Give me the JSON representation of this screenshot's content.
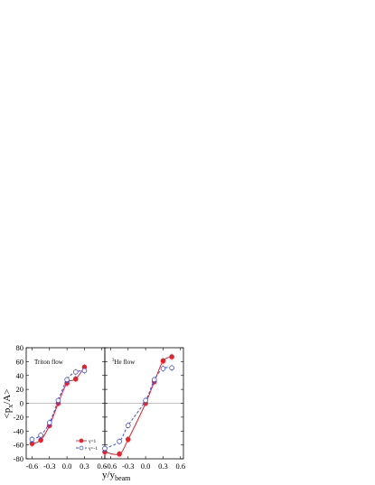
{
  "chart_data": [
    {
      "type": "line",
      "panel": "left",
      "annotation": "Triton flow",
      "ylabel": "<pₓ/A>",
      "ylabel_parts": {
        "pre": "<p",
        "sub": "x",
        "post": "/A>"
      },
      "xlabel": "y/y",
      "xlabel_sub": "beam",
      "xlim": [
        -0.7,
        0.65
      ],
      "ylim": [
        -80,
        80
      ],
      "x_ticks": [
        -0.6,
        -0.3,
        0.0,
        0.3,
        0.6
      ],
      "x_tick_labels": [
        "-0.6",
        "-0.3",
        "0.0",
        "0.3",
        "0.6"
      ],
      "y_ticks": [
        -80,
        -60,
        -40,
        -20,
        0,
        20,
        40,
        60,
        80
      ],
      "y_tick_labels": [
        "-80",
        "-60",
        "-40",
        "-20",
        "0",
        "20",
        "40",
        "60",
        "80"
      ],
      "grid": false,
      "series": [
        {
          "name": "γ=1",
          "color": "#e8202a",
          "style": "solid",
          "marker": "filled-circle",
          "x": [
            -0.6,
            -0.45,
            -0.3,
            -0.15,
            0.0,
            0.15,
            0.3,
            0.45,
            0.6
          ],
          "y": [
            -58,
            -53,
            -32,
            0,
            29,
            35,
            52,
            null,
            null
          ]
        },
        {
          "name": "γ=-1",
          "color": "#3a4fd8",
          "style": "dashed",
          "marker": "open-circle",
          "x": [
            -0.6,
            -0.45,
            -0.3,
            -0.15,
            0.0,
            0.15,
            0.3,
            0.45,
            0.6
          ],
          "y": [
            -52,
            -46,
            -28,
            4,
            34,
            45,
            47,
            null,
            null
          ]
        }
      ],
      "legend": {
        "placement": "bottom-right",
        "entries": [
          "γ=1",
          "γ=-1"
        ]
      }
    },
    {
      "type": "line",
      "panel": "right",
      "annotation_sup": "3",
      "annotation": "He flow",
      "xlim": [
        -0.7,
        0.65
      ],
      "ylim": [
        -80,
        80
      ],
      "x_ticks": [
        -0.6,
        -0.3,
        0.0,
        0.3,
        0.6
      ],
      "x_tick_labels": [
        "-0.6",
        "-0.3",
        "0.0",
        "0.3",
        "0.6"
      ],
      "grid": false,
      "series": [
        {
          "name": "γ=1",
          "color": "#e8202a",
          "style": "solid",
          "marker": "filled-circle",
          "x": [
            -0.7,
            -0.45,
            -0.3,
            0.0,
            0.15,
            0.3,
            0.45,
            0.6
          ],
          "y": [
            -70,
            -73,
            -52,
            0,
            31,
            61,
            67,
            null
          ]
        },
        {
          "name": "γ=-1",
          "color": "#3a4fd8",
          "style": "dashed",
          "marker": "open-circle",
          "x": [
            -0.7,
            -0.45,
            -0.3,
            0.0,
            0.15,
            0.3,
            0.45,
            0.6
          ],
          "y": [
            -65,
            -55,
            -32,
            4,
            34,
            50,
            51,
            null
          ]
        }
      ]
    }
  ]
}
